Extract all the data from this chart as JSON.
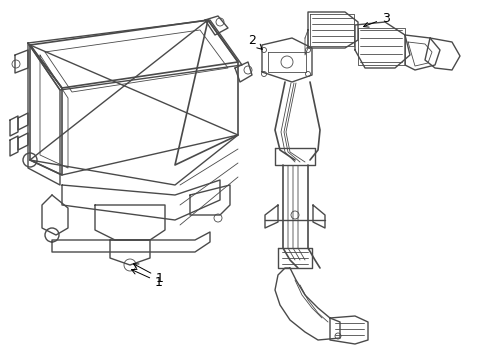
{
  "background_color": "#ffffff",
  "line_color": "#4a4a4a",
  "label_color": "#000000",
  "lw_main": 1.0,
  "lw_thin": 0.6,
  "figsize": [
    4.9,
    3.6
  ],
  "dpi": 100
}
